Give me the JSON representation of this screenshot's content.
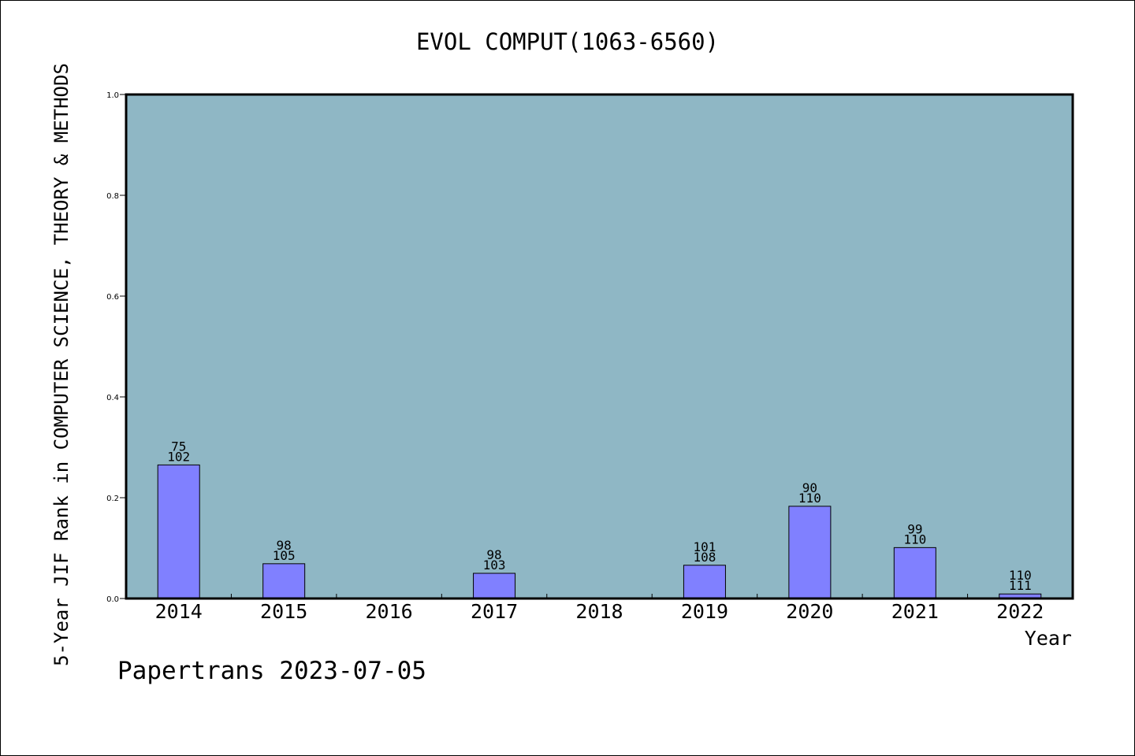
{
  "chart_data": {
    "type": "bar",
    "title": "EVOL COMPUT(1063-6560)",
    "xlabel": "Year",
    "ylabel": "5-Year JIF Rank in COMPUTER SCIENCE, THEORY & METHODS",
    "categories": [
      "2014",
      "2015",
      "2016",
      "2017",
      "2018",
      "2019",
      "2020",
      "2021",
      "2022"
    ],
    "values": [
      0.265,
      0.069,
      null,
      0.05,
      null,
      0.066,
      0.183,
      0.101,
      0.009
    ],
    "bar_labels": [
      [
        "75",
        "102"
      ],
      [
        "98",
        "105"
      ],
      null,
      [
        "98",
        "103"
      ],
      null,
      [
        "101",
        "108"
      ],
      [
        "90",
        "110"
      ],
      [
        "99",
        "110"
      ],
      [
        "110",
        "111"
      ]
    ],
    "ylim": [
      0,
      1.0
    ],
    "yticks": [
      "0.0",
      "0.2",
      "0.4",
      "0.6",
      "0.8",
      "1.0"
    ],
    "grid": false,
    "legend": "none",
    "colors": {
      "plot_background": "#8fb7c5",
      "bar_fill": "#8080ff",
      "bar_stroke": "#000000",
      "axis": "#000000"
    }
  },
  "footer": {
    "note": "Papertrans 2023-07-05"
  }
}
